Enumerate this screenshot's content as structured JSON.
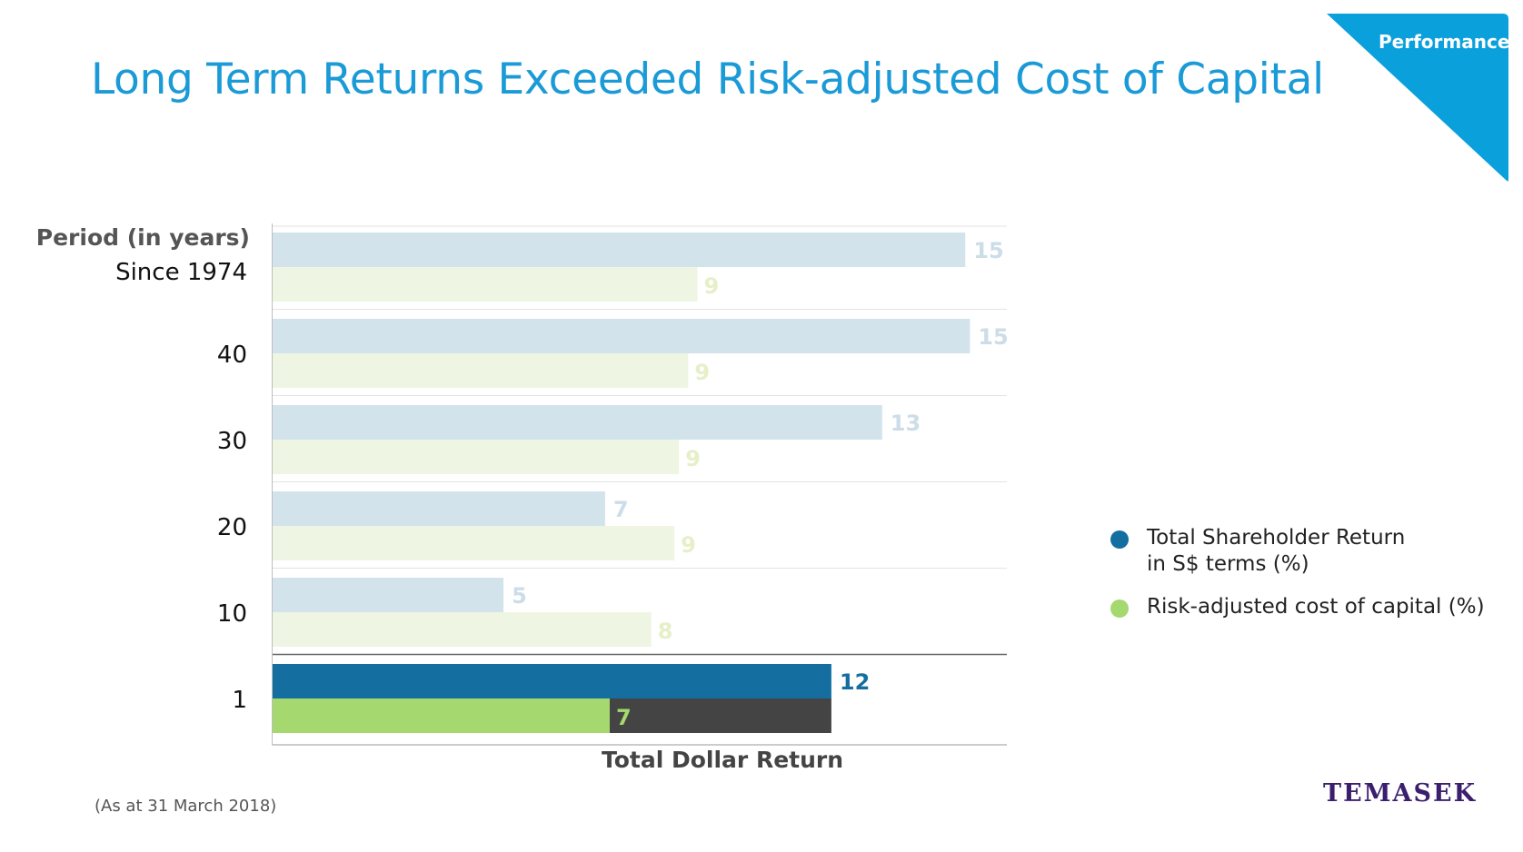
{
  "title": "Long Term Returns Exceeded Risk-adjusted Cost of Capital",
  "section_tag": "Performance",
  "footnote": "(As at 31 March 2018)",
  "brand": "TEMASEK",
  "colors": {
    "title": "#1a9ad6",
    "corner": "#0aa0dc",
    "tsr_light": "#d3e3ec",
    "cost_light": "#eef6e3",
    "tsr_label_light": "#cddde8",
    "cost_label_light": "#e7efc8",
    "tsr_dark": "#146fa0",
    "cost_dark": "#a6d870",
    "total_dollar": "#444444",
    "grid": "#e3e3e3",
    "axis": "#666666"
  },
  "legend": [
    {
      "label": "Total Shareholder Return\nin S$ terms (%)",
      "color": "#146fa0"
    },
    {
      "label": "Risk-adjusted cost of capital (%)",
      "color": "#a6d870"
    }
  ],
  "chart_data": {
    "type": "bar",
    "orientation": "horizontal",
    "header_label": "Period (in years)",
    "categories": [
      "Since 1974",
      "40",
      "30",
      "20",
      "10",
      "1"
    ],
    "series": [
      {
        "name": "Total Shareholder Return in S$ terms (%)",
        "values": [
          15,
          15,
          13,
          7,
          5,
          12
        ]
      },
      {
        "name": "Risk-adjusted cost of capital (%)",
        "values": [
          9,
          9,
          9,
          9,
          8,
          7
        ]
      }
    ],
    "display_values": {
      "tsr": [
        "15",
        "15",
        "13",
        "7",
        "5",
        "12"
      ],
      "cost": [
        "9",
        "9",
        "9",
        "9",
        "8",
        "7"
      ]
    },
    "plotted_values": {
      "tsr": [
        15,
        15.1,
        13.2,
        7.2,
        5.0,
        12.1
      ],
      "cost": [
        9.2,
        9.0,
        8.8,
        8.7,
        8.2,
        7.3
      ]
    },
    "total_dollar_return": {
      "category": "1",
      "value": 12,
      "label": "Total Dollar Return"
    },
    "highlight_category": "1",
    "xlim": [
      0,
      15.9
    ]
  }
}
